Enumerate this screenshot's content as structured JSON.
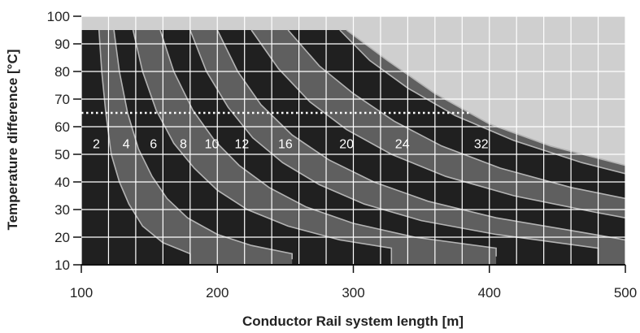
{
  "chart_data": {
    "type": "area",
    "xlabel": "Conductor Rail system length [m]",
    "ylabel": "Temperature difference [°C]",
    "xlim": [
      100,
      500
    ],
    "ylim": [
      10,
      100
    ],
    "x_ticks": [
      "100",
      "200",
      "300",
      "400",
      "500"
    ],
    "y_ticks": [
      "10",
      "20",
      "30",
      "40",
      "50",
      "60",
      "70",
      "80",
      "90",
      "100"
    ],
    "grid": true,
    "reference_line": {
      "y": 65,
      "x_range": [
        100,
        385
      ],
      "style": "dotted"
    },
    "colors": {
      "background": "#cfcfcf",
      "dark": "#202020",
      "mid": "#5f5f5f",
      "curve": "#b4b4b4",
      "grid": "#ffffff"
    },
    "series": [
      {
        "name": "2",
        "label_at": [
          111,
          54
        ],
        "x": [
          113,
          115,
          118,
          122,
          128,
          135,
          145,
          160,
          180,
          180
        ],
        "y": [
          95,
          80,
          65,
          50,
          40,
          32,
          24,
          18,
          14,
          10
        ]
      },
      {
        "name": "4",
        "label_at": [
          133,
          54
        ],
        "x": [
          124,
          128,
          134,
          142,
          152,
          163,
          178,
          200,
          225,
          255,
          255
        ],
        "y": [
          95,
          80,
          65,
          52,
          42,
          34,
          27,
          21,
          17,
          14,
          12
        ]
      },
      {
        "name": "6",
        "label_at": [
          153,
          54
        ],
        "x": [
          138,
          145,
          155,
          168,
          183,
          200,
          222,
          252,
          290,
          328,
          328
        ],
        "y": [
          95,
          80,
          66,
          54,
          45,
          37,
          30,
          24,
          19,
          16,
          10
        ]
      },
      {
        "name": "8",
        "label_at": [
          175,
          54
        ],
        "x": [
          158,
          168,
          182,
          198,
          216,
          238,
          265,
          300,
          345,
          405,
          405
        ],
        "y": [
          95,
          80,
          66,
          55,
          46,
          38,
          31,
          25,
          20,
          16,
          13
        ]
      },
      {
        "name": "10",
        "label_at": [
          196,
          54
        ],
        "x": [
          180,
          192,
          208,
          226,
          248,
          275,
          308,
          350,
          405,
          480,
          480
        ],
        "y": [
          95,
          80,
          67,
          56,
          47,
          39,
          32,
          26,
          21,
          16,
          10
        ]
      },
      {
        "name": "12",
        "label_at": [
          218,
          54
        ],
        "x": [
          200,
          215,
          232,
          255,
          282,
          315,
          355,
          405,
          465,
          500
        ],
        "y": [
          95,
          80,
          68,
          57,
          48,
          40,
          33,
          27,
          22,
          19
        ]
      },
      {
        "name": "16",
        "label_at": [
          250,
          54
        ],
        "x": [
          225,
          245,
          268,
          295,
          328,
          368,
          418,
          478,
          500
        ],
        "y": [
          95,
          81,
          69,
          59,
          50,
          42,
          35,
          29,
          27
        ]
      },
      {
        "name": "20",
        "label_at": [
          295,
          54
        ],
        "x": [
          252,
          275,
          300,
          330,
          365,
          408,
          460,
          500
        ],
        "y": [
          95,
          82,
          72,
          62,
          53,
          45,
          38,
          34
        ]
      },
      {
        "name": "24",
        "label_at": [
          336,
          54
        ],
        "x": [
          290,
          312,
          340,
          375,
          418,
          468,
          500
        ],
        "y": [
          95,
          84,
          74,
          64,
          55,
          47,
          43
        ]
      },
      {
        "name": "32",
        "label_at": [
          394,
          54
        ],
        "x": [
          295,
          325,
          360,
          400,
          445,
          500
        ],
        "y": [
          95,
          84,
          72,
          61,
          53,
          46
        ]
      }
    ]
  }
}
